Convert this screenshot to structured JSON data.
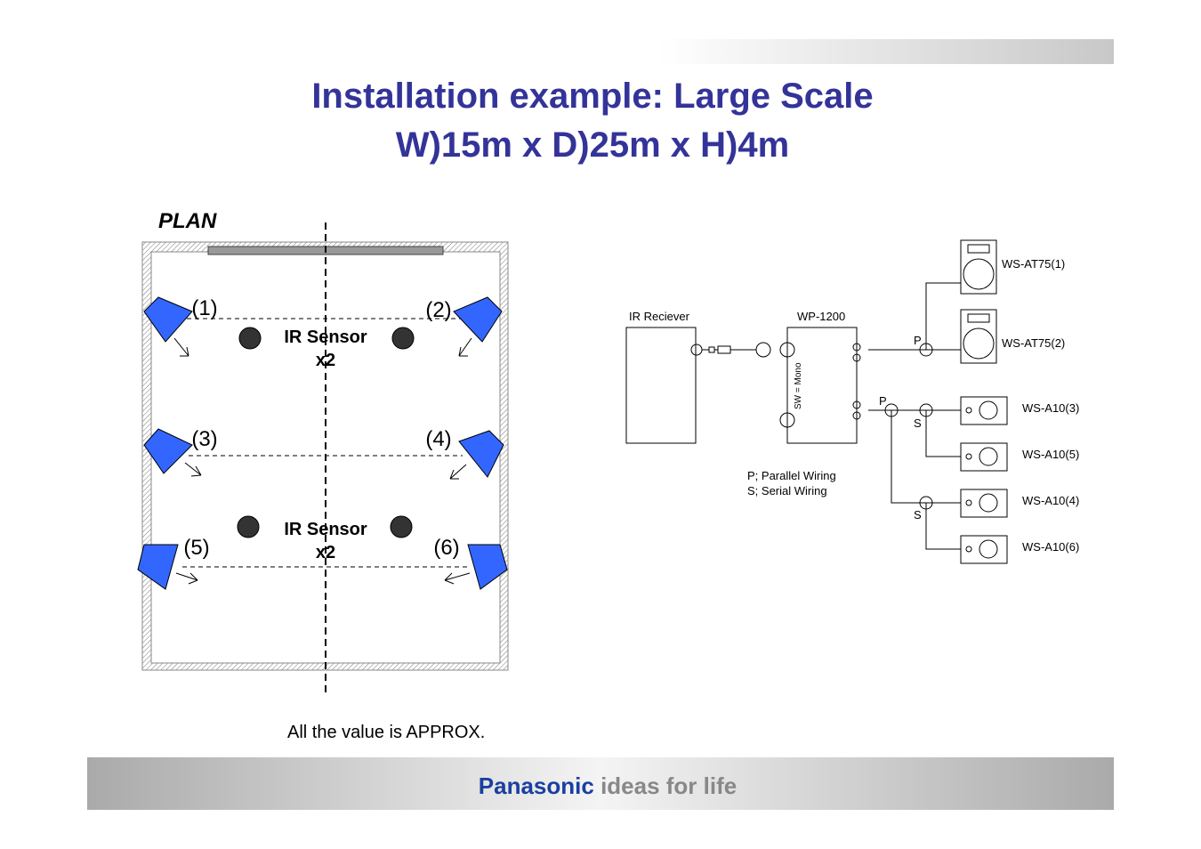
{
  "header": {
    "title_line1": "Installation example: Large Scale",
    "title_line2": "W)15m x D)25m x H)4m"
  },
  "plan": {
    "label": "PLAN",
    "speakers": [
      "(1)",
      "(2)",
      "(3)",
      "(4)",
      "(5)",
      "(6)"
    ],
    "sensors": [
      {
        "label": "IR Sensor",
        "count": "x2"
      },
      {
        "label": "IR Sensor",
        "count": "x2"
      }
    ],
    "note": "All the value is APPROX."
  },
  "wiring": {
    "receiver": "IR Reciever",
    "amplifier": "WP-1200",
    "switch": "SW = Mono",
    "outputs": [
      "WS-AT75(1)",
      "WS-AT75(2)",
      "WS-A10(3)",
      "WS-A10(5)",
      "WS-A10(4)",
      "WS-A10(6)"
    ],
    "marks": [
      "P",
      "P",
      "S",
      "S"
    ],
    "legend": [
      "P; Parallel Wiring",
      "S; Serial Wiring"
    ]
  },
  "footer": {
    "brand": "Panasonic",
    "slogan": "ideas for life"
  }
}
